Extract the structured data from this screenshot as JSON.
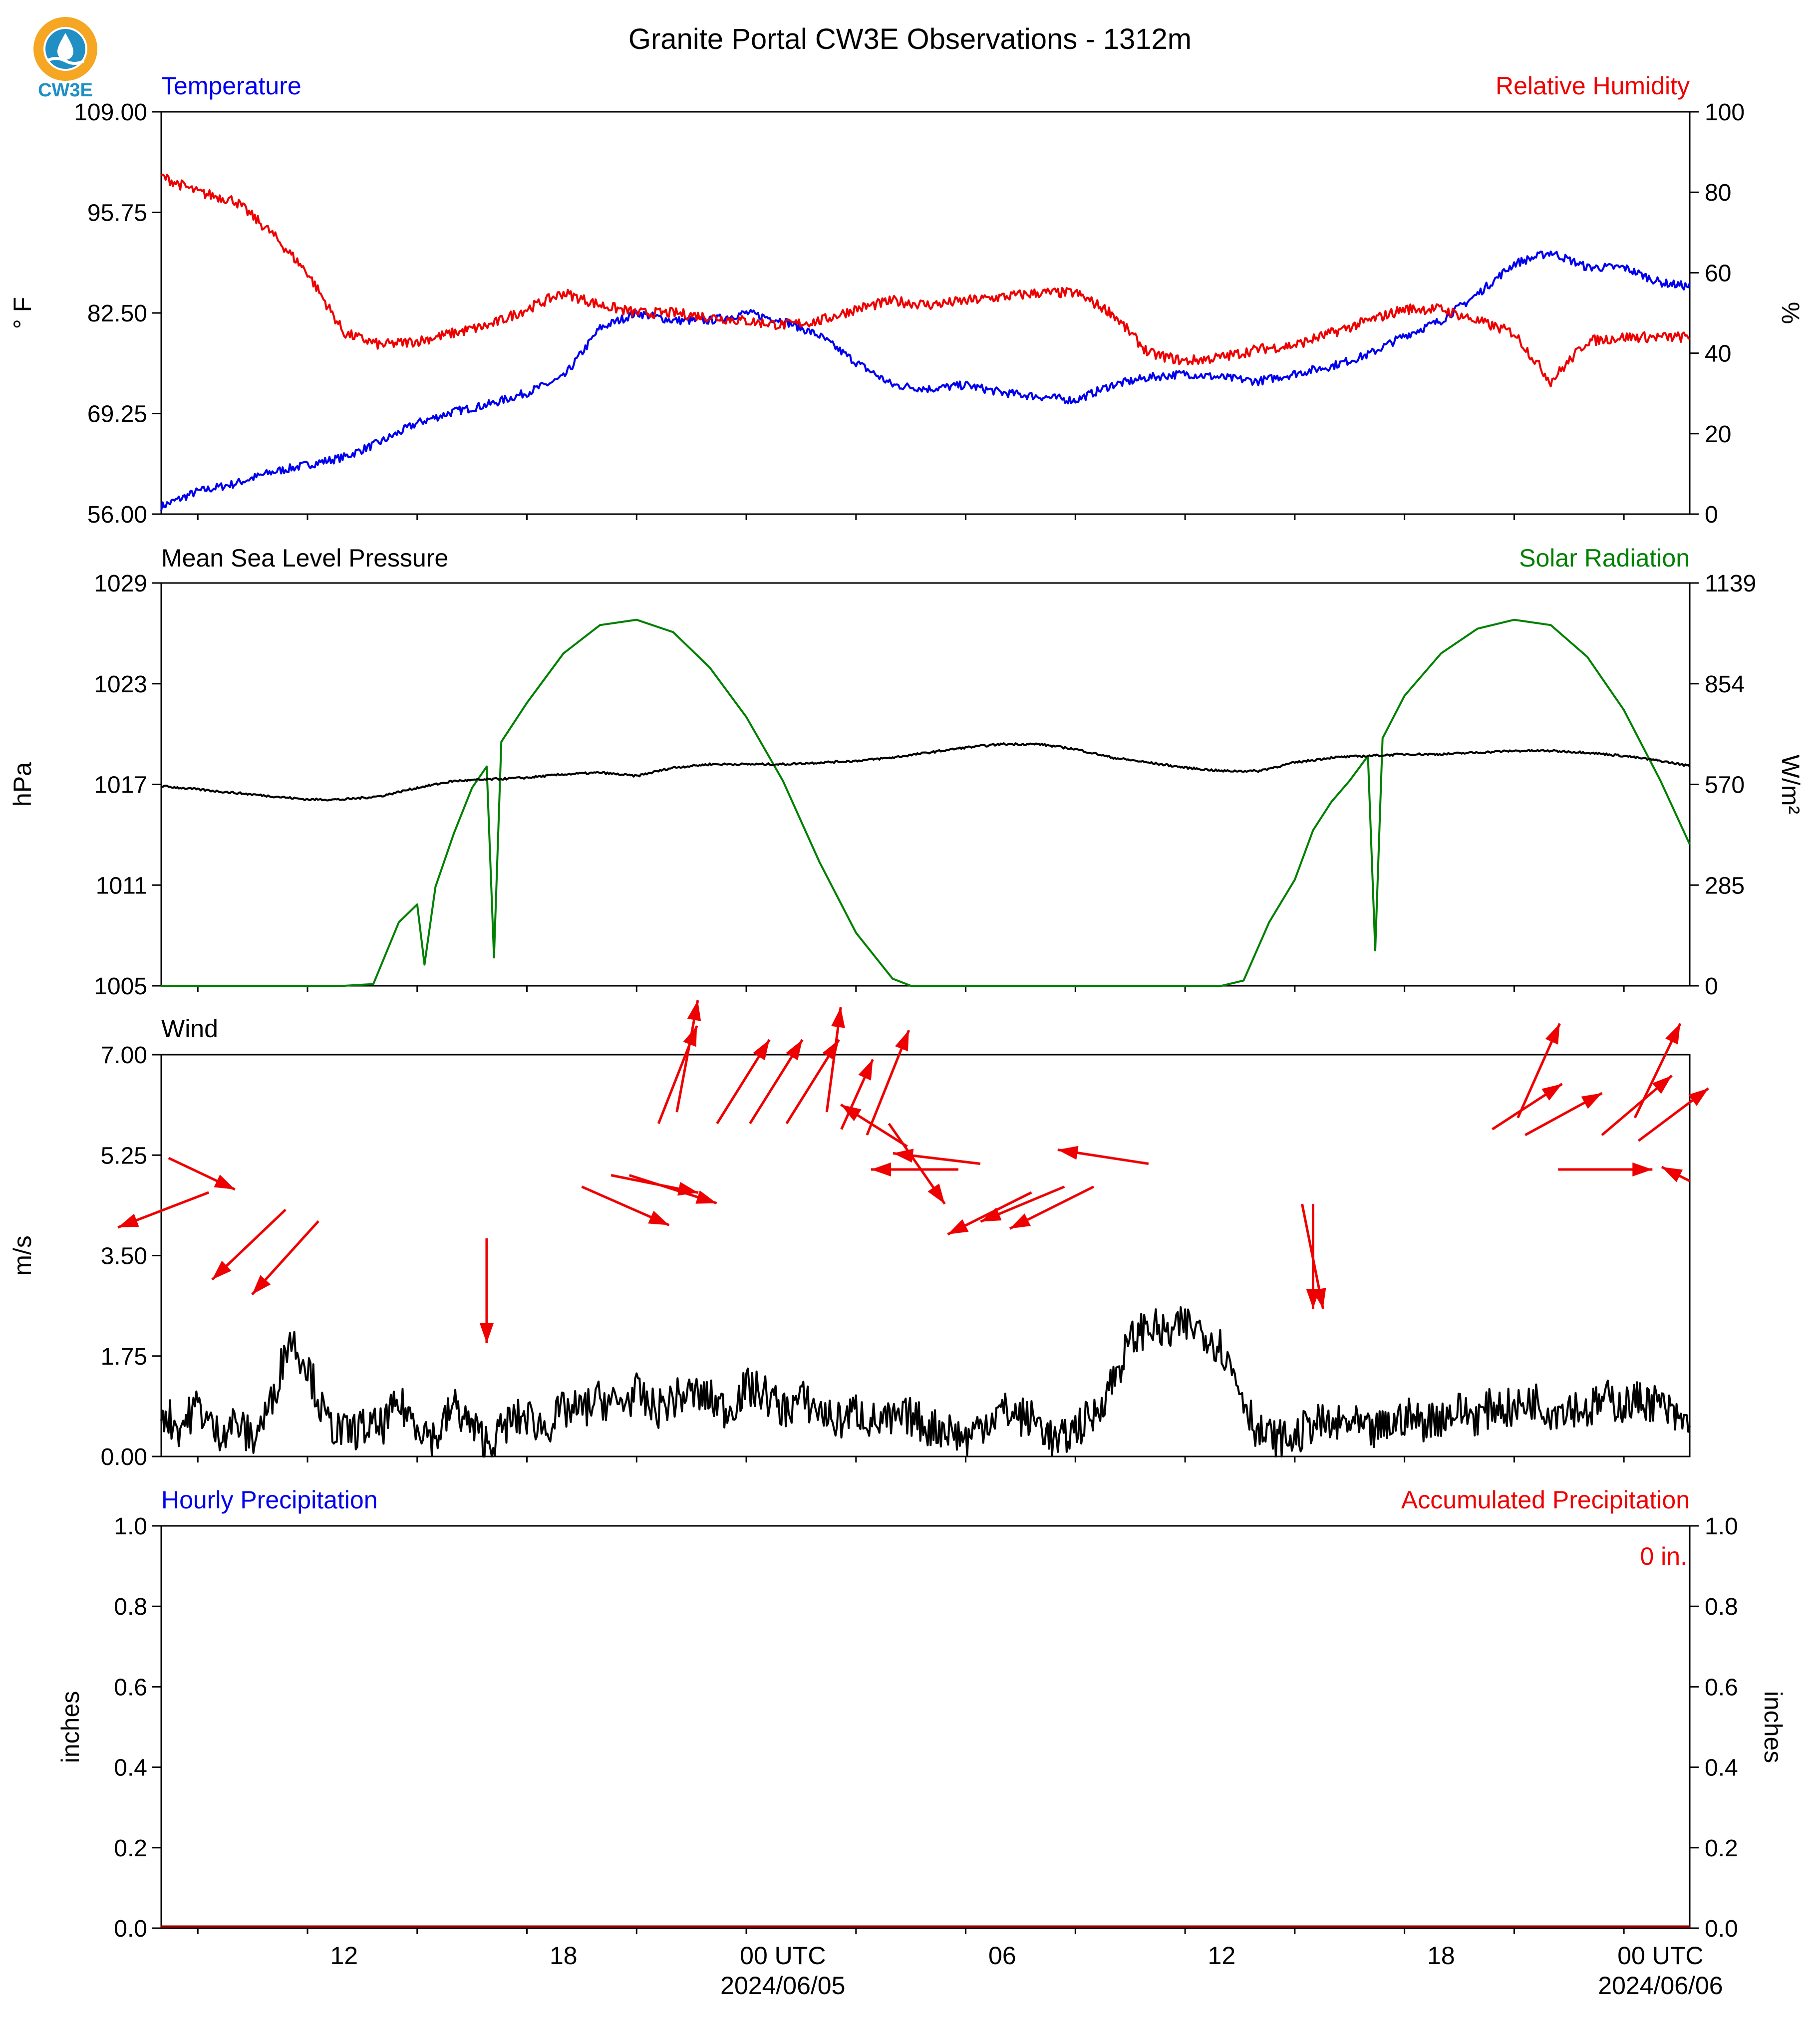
{
  "title": "Granite Portal CW3E Observations - 1312m",
  "logo": {
    "text": "CW3E",
    "colors": {
      "ring": "#f5a623",
      "drop": "#1f8fc4",
      "text": "#1f8fc4"
    }
  },
  "colors": {
    "blue": "#0000ee",
    "red": "#ee0000",
    "green": "#008000",
    "black": "#000000"
  },
  "x_axis": {
    "tick_labels": [
      {
        "label": "12",
        "hour": 12
      },
      {
        "label": "18",
        "hour": 18
      },
      {
        "label": "00 UTC",
        "hour": 24,
        "sub": "2024/06/05"
      },
      {
        "label": "06",
        "hour": 30
      },
      {
        "label": "12",
        "hour": 36
      },
      {
        "label": "18",
        "hour": 42
      },
      {
        "label": "00 UTC",
        "hour": 48,
        "sub": "2024/06/06"
      }
    ],
    "range_hours": [
      7.0,
      48.8
    ]
  },
  "chart_data": [
    {
      "id": "temp_rh",
      "type": "line",
      "left_title": "Temperature",
      "right_title": "Relative Humidity",
      "ylabel": "° F",
      "ylabel_right": "%",
      "ylim": [
        56.0,
        109.0
      ],
      "ylim_right": [
        0,
        100
      ],
      "yticks": [
        "56.00",
        "69.25",
        "82.50",
        "95.75",
        "109.00"
      ],
      "yticks_right": [
        "0",
        "20",
        "40",
        "60",
        "80",
        "100"
      ],
      "series": [
        {
          "name": "Temperature",
          "axis": "left",
          "color": "#0000ee",
          "x": [
            7.0,
            8.0,
            9.0,
            10.0,
            11.0,
            12.0,
            13.0,
            14.0,
            15.0,
            16.0,
            17.0,
            18.0,
            19.0,
            20.0,
            21.0,
            22.0,
            23.0,
            24.0,
            25.0,
            26.0,
            27.0,
            28.0,
            29.0,
            30.0,
            31.0,
            32.0,
            33.0,
            34.0,
            35.0,
            36.0,
            37.0,
            38.0,
            39.0,
            40.0,
            41.0,
            42.0,
            43.0,
            44.0,
            45.0,
            46.0,
            47.0,
            48.0,
            48.8
          ],
          "y": [
            57.0,
            59.0,
            60.0,
            61.5,
            62.5,
            63.5,
            65.5,
            68.0,
            69.5,
            70.5,
            72.0,
            74.0,
            80.5,
            82.5,
            81.5,
            81.5,
            82.5,
            81.5,
            79.5,
            76.0,
            73.0,
            72.5,
            73.0,
            72.0,
            71.5,
            71.0,
            73.0,
            74.0,
            74.5,
            74.0,
            73.5,
            74.5,
            75.5,
            77.0,
            79.5,
            81.5,
            85.0,
            89.0,
            90.5,
            88.5,
            88.5,
            86.5,
            86.0
          ]
        },
        {
          "name": "Relative Humidity",
          "axis": "right",
          "color": "#ee0000",
          "x": [
            7.0,
            8.0,
            9.0,
            10.0,
            11.0,
            12.0,
            13.0,
            14.0,
            15.0,
            16.0,
            17.0,
            18.0,
            19.0,
            20.0,
            21.0,
            22.0,
            23.0,
            24.0,
            25.0,
            26.0,
            27.0,
            28.0,
            29.0,
            30.0,
            31.0,
            32.0,
            33.0,
            34.0,
            35.0,
            36.0,
            37.0,
            38.0,
            39.0,
            40.0,
            41.0,
            42.0,
            43.0,
            44.0,
            45.0,
            46.0,
            47.0,
            48.0,
            48.8
          ],
          "y": [
            84.0,
            80.0,
            78.0,
            70.0,
            60.0,
            45.0,
            42.0,
            43.0,
            45.0,
            47.0,
            51.0,
            55.0,
            52.0,
            50.0,
            50.0,
            49.0,
            48.0,
            47.0,
            48.0,
            51.0,
            53.0,
            52.0,
            53.0,
            54.0,
            55.0,
            55.0,
            50.0,
            40.0,
            38.0,
            39.0,
            41.0,
            42.0,
            45.0,
            48.0,
            51.0,
            51.0,
            48.0,
            45.0,
            33.0,
            43.0,
            44.0,
            44.0,
            44.0
          ]
        }
      ]
    },
    {
      "id": "pressure_solar",
      "type": "line",
      "left_title": "Mean Sea Level Pressure",
      "right_title": "Solar Radiation",
      "ylabel": "hPa",
      "ylabel_right": "W/m²",
      "ylim": [
        1005,
        1029
      ],
      "ylim_right": [
        0,
        1139
      ],
      "yticks": [
        "1005",
        "1011",
        "1017",
        "1023",
        "1029"
      ],
      "yticks_right": [
        "0",
        "285",
        "570",
        "854",
        "1139"
      ],
      "series": [
        {
          "name": "Mean Sea Level Pressure",
          "axis": "left",
          "color": "#000000",
          "x": [
            7.0,
            8.0,
            9.0,
            10.0,
            11.0,
            12.0,
            13.0,
            14.0,
            15.0,
            16.0,
            17.0,
            18.0,
            19.0,
            20.0,
            21.0,
            22.0,
            23.0,
            24.0,
            25.0,
            26.0,
            27.0,
            28.0,
            29.0,
            30.0,
            31.0,
            32.0,
            33.0,
            34.0,
            35.0,
            36.0,
            37.0,
            38.0,
            39.0,
            40.0,
            41.0,
            42.0,
            43.0,
            44.0,
            45.0,
            46.0,
            47.0,
            48.0,
            48.8
          ],
          "y": [
            1016.9,
            1016.7,
            1016.5,
            1016.3,
            1016.1,
            1016.1,
            1016.3,
            1016.8,
            1017.2,
            1017.3,
            1017.4,
            1017.6,
            1017.7,
            1017.5,
            1018.0,
            1018.2,
            1018.2,
            1018.2,
            1018.3,
            1018.4,
            1018.6,
            1018.9,
            1019.2,
            1019.4,
            1019.4,
            1019.1,
            1018.6,
            1018.3,
            1018.0,
            1017.8,
            1017.8,
            1018.3,
            1018.6,
            1018.7,
            1018.8,
            1018.8,
            1018.9,
            1019.0,
            1019.0,
            1018.9,
            1018.7,
            1018.4,
            1018.1
          ]
        },
        {
          "name": "Solar Radiation",
          "axis": "right",
          "color": "#008000",
          "x": [
            7.0,
            12.0,
            12.8,
            13.5,
            14.0,
            14.2,
            14.5,
            15.0,
            15.5,
            15.9,
            16.1,
            16.3,
            17.0,
            18.0,
            19.0,
            20.0,
            21.0,
            22.0,
            23.0,
            24.0,
            25.0,
            26.0,
            27.0,
            27.5,
            31.0,
            35.0,
            36.0,
            36.6,
            37.3,
            38.0,
            38.5,
            39.0,
            39.5,
            40.0,
            40.2,
            40.4,
            41.0,
            42.0,
            43.0,
            44.0,
            45.0,
            46.0,
            47.0,
            48.0,
            48.8
          ],
          "y": [
            0,
            0,
            5,
            180,
            230,
            60,
            280,
            430,
            560,
            620,
            80,
            690,
            800,
            940,
            1020,
            1035,
            1000,
            900,
            760,
            580,
            350,
            150,
            20,
            0,
            0,
            0,
            0,
            15,
            180,
            300,
            440,
            520,
            580,
            650,
            100,
            700,
            820,
            940,
            1010,
            1035,
            1020,
            930,
            780,
            580,
            400
          ]
        },
        {
          "name": "Wind Speed",
          "axis": "left",
          "color": "#000000",
          "subplot": "wind",
          "x": [
            7.0,
            7.5,
            8.0,
            8.5,
            9.0,
            9.5,
            10.0,
            10.5,
            11.0,
            11.5,
            12.0,
            12.5,
            13.0,
            13.5,
            14.0,
            14.5,
            15.0,
            15.5,
            16.0,
            16.5,
            17.0,
            17.5,
            18.0,
            18.5,
            19.0,
            19.5,
            20.0,
            20.5,
            21.0,
            21.5,
            22.0,
            22.5,
            23.0,
            23.5,
            24.0,
            24.5,
            25.0,
            25.5,
            26.0,
            26.5,
            27.0,
            27.5,
            28.0,
            28.5,
            29.0,
            29.5,
            30.0,
            30.5,
            31.0,
            31.5,
            32.0,
            32.5,
            33.0,
            33.5,
            34.0,
            34.5,
            35.0,
            35.5,
            36.0,
            36.5,
            37.0,
            37.5,
            38.0,
            38.5,
            39.0,
            39.5,
            40.0,
            40.5,
            41.0,
            41.5,
            42.0,
            42.5,
            43.0,
            43.5,
            44.0,
            44.5,
            45.0,
            45.5,
            46.0,
            46.5,
            47.0,
            47.5,
            48.0,
            48.5,
            48.8
          ],
          "y": [
            0.8,
            0.5,
            0.9,
            0.4,
            0.6,
            0.3,
            0.9,
            2.1,
            1.6,
            0.6,
            0.4,
            0.5,
            0.5,
            0.9,
            0.6,
            0.3,
            0.9,
            0.5,
            0.2,
            0.6,
            0.7,
            0.5,
            0.8,
            0.8,
            1.0,
            0.9,
            1.1,
            0.8,
            1.0,
            1.1,
            1.0,
            0.8,
            1.2,
            1.1,
            0.8,
            1.0,
            0.8,
            0.6,
            0.8,
            0.6,
            0.6,
            0.7,
            0.5,
            0.5,
            0.3,
            0.6,
            0.8,
            0.7,
            0.6,
            0.2,
            0.5,
            0.7,
            1.3,
            2.0,
            2.3,
            2.1,
            2.3,
            2.2,
            1.9,
            1.2,
            0.4,
            0.3,
            0.3,
            0.6,
            0.5,
            0.6,
            0.4,
            0.5,
            0.7,
            0.6,
            0.7,
            0.8,
            0.7,
            0.9,
            0.8,
            1.0,
            0.8,
            0.9,
            0.8,
            1.0,
            0.9,
            1.0,
            0.9,
            0.6,
            0.6
          ]
        }
      ]
    },
    {
      "id": "wind",
      "type": "line",
      "left_title": "Wind",
      "ylabel": "m/s",
      "ylim": [
        0.0,
        7.0
      ],
      "yticks": [
        "0.00",
        "1.75",
        "3.50",
        "5.25",
        "7.00"
      ],
      "arrow_color": "#ee0000",
      "wind_arrows": [
        {
          "hour": 7.2,
          "speed": 5.2,
          "u": 1.9,
          "v": -0.9
        },
        {
          "hour": 8.3,
          "speed": 4.6,
          "u": -2.6,
          "v": -1.0
        },
        {
          "hour": 10.4,
          "speed": 4.3,
          "u": -2.1,
          "v": -2.0
        },
        {
          "hour": 11.3,
          "speed": 4.1,
          "u": -1.9,
          "v": -2.1
        },
        {
          "hour": 15.9,
          "speed": 3.8,
          "u": 0.0,
          "v": -3.0
        },
        {
          "hour": 18.5,
          "speed": 4.7,
          "u": 2.5,
          "v": -1.1
        },
        {
          "hour": 19.3,
          "speed": 4.9,
          "u": 2.5,
          "v": -0.5
        },
        {
          "hour": 19.8,
          "speed": 4.9,
          "u": 2.5,
          "v": -0.8
        },
        {
          "hour": 20.6,
          "speed": 5.8,
          "u": 1.1,
          "v": 2.8
        },
        {
          "hour": 21.1,
          "speed": 6.0,
          "u": 0.6,
          "v": 3.2
        },
        {
          "hour": 22.2,
          "speed": 5.8,
          "u": 1.5,
          "v": 2.4
        },
        {
          "hour": 23.1,
          "speed": 5.8,
          "u": 1.5,
          "v": 2.4
        },
        {
          "hour": 24.1,
          "speed": 5.8,
          "u": 1.5,
          "v": 2.4
        },
        {
          "hour": 25.2,
          "speed": 6.0,
          "u": 0.4,
          "v": 3.0
        },
        {
          "hour": 25.6,
          "speed": 5.7,
          "u": 0.9,
          "v": 2.0
        },
        {
          "hour": 26.3,
          "speed": 5.6,
          "u": 1.2,
          "v": 3.0
        },
        {
          "hour": 26.9,
          "speed": 5.8,
          "u": 1.6,
          "v": -2.3
        },
        {
          "hour": 27.4,
          "speed": 5.4,
          "u": -1.9,
          "v": 1.2
        },
        {
          "hour": 28.8,
          "speed": 5.0,
          "u": -2.5,
          "v": 0.0
        },
        {
          "hour": 29.4,
          "speed": 5.1,
          "u": -2.5,
          "v": 0.3
        },
        {
          "hour": 30.8,
          "speed": 4.6,
          "u": -2.4,
          "v": -1.2
        },
        {
          "hour": 31.7,
          "speed": 4.7,
          "u": -2.4,
          "v": -1.0
        },
        {
          "hour": 32.5,
          "speed": 4.7,
          "u": -2.4,
          "v": -1.2
        },
        {
          "hour": 34.0,
          "speed": 5.1,
          "u": -2.6,
          "v": 0.4
        },
        {
          "hour": 38.2,
          "speed": 4.4,
          "u": 0.6,
          "v": -3.0
        },
        {
          "hour": 38.5,
          "speed": 4.4,
          "u": 0.0,
          "v": -3.0
        },
        {
          "hour": 43.4,
          "speed": 5.7,
          "u": 2.0,
          "v": 1.3
        },
        {
          "hour": 44.1,
          "speed": 5.9,
          "u": 1.2,
          "v": 2.7
        },
        {
          "hour": 44.3,
          "speed": 5.6,
          "u": 2.2,
          "v": 1.2
        },
        {
          "hour": 45.2,
          "speed": 5.0,
          "u": 2.7,
          "v": 0.0
        },
        {
          "hour": 46.4,
          "speed": 5.6,
          "u": 2.0,
          "v": 1.7
        },
        {
          "hour": 47.3,
          "speed": 5.9,
          "u": 1.3,
          "v": 2.7
        },
        {
          "hour": 47.4,
          "speed": 5.5,
          "u": 2.0,
          "v": 1.5
        },
        {
          "hour": 48.8,
          "speed": 4.8,
          "u": -0.8,
          "v": 0.4
        }
      ]
    },
    {
      "id": "precip",
      "type": "line",
      "left_title": "Hourly Precipitation",
      "right_title": "Accumulated Precipitation",
      "ylabel": "inches",
      "ylabel_right": "inches",
      "ylim": [
        0.0,
        1.0
      ],
      "ylim_right": [
        0.0,
        1.0
      ],
      "yticks": [
        "0.0",
        "0.2",
        "0.4",
        "0.6",
        "0.8",
        "1.0"
      ],
      "yticks_right": [
        "0.0",
        "0.2",
        "0.4",
        "0.6",
        "0.8",
        "1.0"
      ],
      "annotation": "0 in.",
      "series": [
        {
          "name": "Accumulated Precipitation",
          "axis": "right",
          "color": "#8b0000",
          "x": [
            7.0,
            48.8
          ],
          "y": [
            0.0,
            0.0
          ]
        }
      ]
    }
  ]
}
